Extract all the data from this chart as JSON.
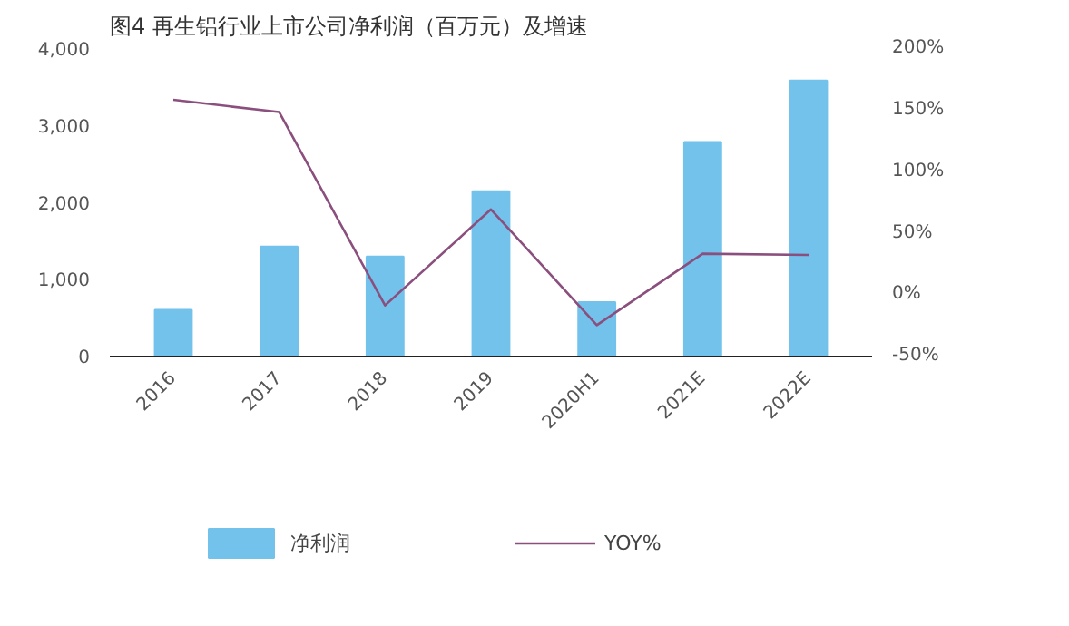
{
  "chart_data": {
    "type": "bar",
    "title": "图4 再生铝行业上市公司净利润（百万元）及增速",
    "categories": [
      "2016",
      "2017",
      "2018",
      "2019",
      "2020H1",
      "2021E",
      "2022E"
    ],
    "series": [
      {
        "name": "净利润",
        "color": "#72c2ec",
        "values": [
          600,
          1420,
          1290,
          2140,
          700,
          2780,
          3580
        ]
      },
      {
        "name": "YOY%",
        "type": "line",
        "axis": "y2",
        "color": "#8b4f7e",
        "values": [
          158,
          148,
          -9,
          69,
          -25,
          33,
          32
        ]
      }
    ],
    "ylim": [
      0,
      4000
    ],
    "yticks": [
      {
        "value": 0,
        "label": "0"
      },
      {
        "value": 1000,
        "label": "1,000"
      },
      {
        "value": 2000,
        "label": "2,000"
      },
      {
        "value": 3000,
        "label": "3,000"
      },
      {
        "value": 4000,
        "label": "4,000"
      }
    ],
    "y2lim": [
      -50,
      200
    ],
    "y2ticks": [
      {
        "value": -50,
        "label": "-50%"
      },
      {
        "value": 0,
        "label": "0%"
      },
      {
        "value": 50,
        "label": "50%"
      },
      {
        "value": 100,
        "label": "100%"
      },
      {
        "value": 150,
        "label": "150%"
      },
      {
        "value": 200,
        "label": "200%"
      }
    ],
    "grid": false,
    "legend": "bottom",
    "marker": "none",
    "line_style": "solid"
  }
}
